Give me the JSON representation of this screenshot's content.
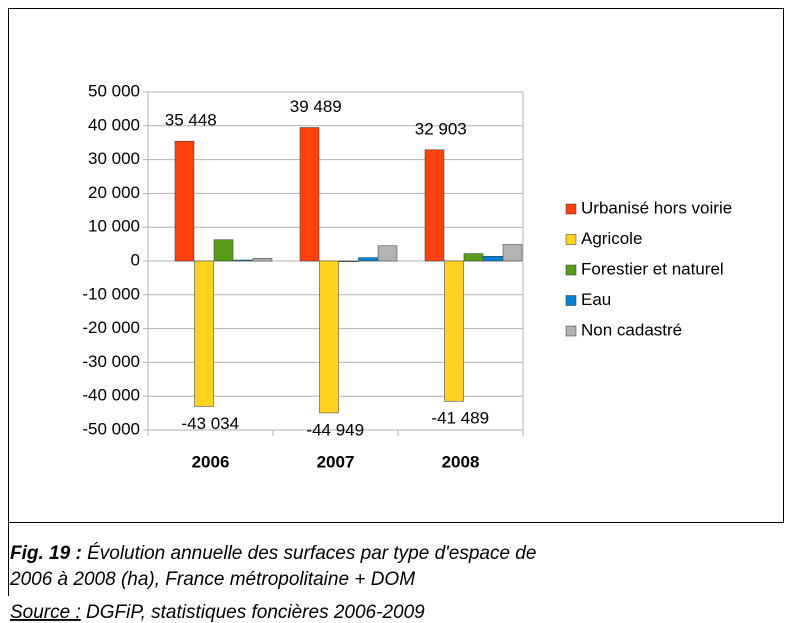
{
  "chart_data": {
    "type": "bar",
    "categories": [
      "2006",
      "2007",
      "2008"
    ],
    "series": [
      {
        "name": "Urbanisé hors voirie",
        "color": "#ff420e",
        "values": [
          35448,
          39489,
          32903
        ],
        "value_labels": [
          "35 448",
          "39 489",
          "32 903"
        ]
      },
      {
        "name": "Agricole",
        "color": "#ffd320",
        "values": [
          -43034,
          -44949,
          -41489
        ],
        "value_labels": [
          "-43 034",
          "-44 949",
          "-41 489"
        ]
      },
      {
        "name": "Forestier et naturel",
        "color": "#579d1c",
        "values": [
          6300,
          -200,
          2200
        ]
      },
      {
        "name": "Eau",
        "color": "#0084d1",
        "values": [
          300,
          1000,
          1400
        ]
      },
      {
        "name": "Non cadastré",
        "color": "#b3b3b3",
        "values": [
          800,
          4500,
          4900
        ]
      }
    ],
    "ylim": [
      -50000,
      50000
    ],
    "yticks": [
      {
        "value": 50000,
        "label": "50 000"
      },
      {
        "value": 40000,
        "label": "40 000"
      },
      {
        "value": 30000,
        "label": "30 000"
      },
      {
        "value": 20000,
        "label": "20 000"
      },
      {
        "value": 10000,
        "label": "10 000"
      },
      0,
      {
        "value": -10000,
        "label": "-10 000"
      },
      {
        "value": -20000,
        "label": "-20 000"
      },
      {
        "value": -30000,
        "label": "-30 000"
      },
      {
        "value": -40000,
        "label": "-40 000"
      },
      {
        "value": -50000,
        "label": "-50 000"
      }
    ],
    "grid": true,
    "legend": "right"
  },
  "caption": {
    "label": "Fig. 19 :",
    "lines": [
      "Évolution annuelle des surfaces par type d'espace de",
      "2006 à 2008 (ha), France métropolitaine + DOM"
    ]
  },
  "source": {
    "label": "Source :",
    "text": "DGFiP, statistiques foncières 2006-2009"
  }
}
